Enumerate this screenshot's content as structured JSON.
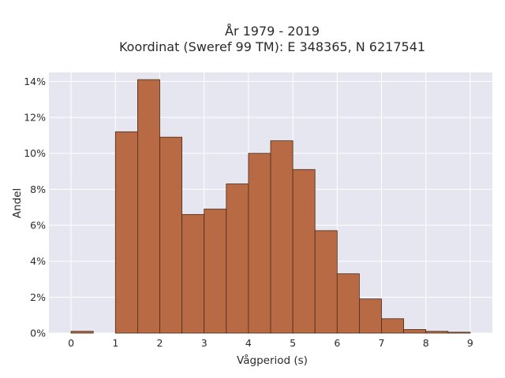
{
  "chart_data": {
    "type": "bar",
    "title_line1": "År 1979 - 2019",
    "title_line2": "Koordinat (Sweref 99 TM): E 348365, N 6217541",
    "xlabel": "Vågperiod (s)",
    "ylabel": "Andel",
    "xlim": [
      -0.5,
      9.5
    ],
    "ylim": [
      0,
      14.5
    ],
    "xticks": [
      0,
      1,
      2,
      3,
      4,
      5,
      6,
      7,
      8,
      9
    ],
    "yticks": [
      0,
      2,
      4,
      6,
      8,
      10,
      12,
      14
    ],
    "ytick_suffix": "%",
    "bin_width": 0.5,
    "bins": [
      {
        "x0": 0.0,
        "value": 0.1
      },
      {
        "x0": 0.5,
        "value": 0.0
      },
      {
        "x0": 1.0,
        "value": 11.2
      },
      {
        "x0": 1.5,
        "value": 14.1
      },
      {
        "x0": 2.0,
        "value": 10.9
      },
      {
        "x0": 2.5,
        "value": 6.6
      },
      {
        "x0": 3.0,
        "value": 6.9
      },
      {
        "x0": 3.5,
        "value": 8.3
      },
      {
        "x0": 4.0,
        "value": 10.0
      },
      {
        "x0": 4.5,
        "value": 10.7
      },
      {
        "x0": 5.0,
        "value": 9.1
      },
      {
        "x0": 5.5,
        "value": 5.7
      },
      {
        "x0": 6.0,
        "value": 3.3
      },
      {
        "x0": 6.5,
        "value": 1.9
      },
      {
        "x0": 7.0,
        "value": 0.8
      },
      {
        "x0": 7.5,
        "value": 0.2
      },
      {
        "x0": 8.0,
        "value": 0.1
      },
      {
        "x0": 8.5,
        "value": 0.05
      }
    ],
    "grid": true,
    "colors": {
      "bar_fill": "#b86a44",
      "bar_edge": "#4a2a18",
      "plot_background": "#e5e6f0",
      "grid": "#ffffff"
    }
  }
}
